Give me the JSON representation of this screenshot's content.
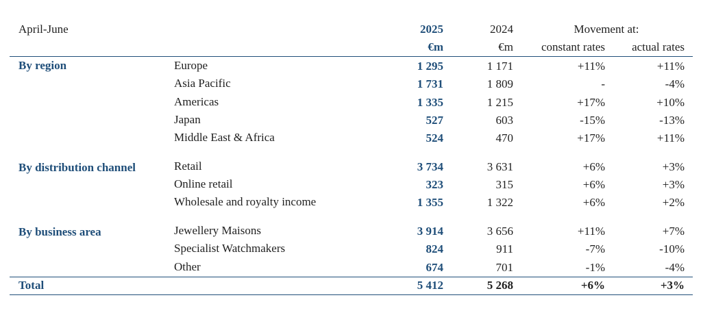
{
  "header": {
    "period": "April-June",
    "col_2025": "2025",
    "col_2024": "2024",
    "movement": "Movement at:",
    "unit_2025": "€m",
    "unit_2024": "€m",
    "constant": "constant rates",
    "actual": "actual rates"
  },
  "sections": [
    {
      "title": "By region",
      "rows": [
        {
          "label": "Europe",
          "v2025": "1 295",
          "v2024": "1 171",
          "constant": "+11%",
          "actual": "+11%"
        },
        {
          "label": "Asia Pacific",
          "v2025": "1 731",
          "v2024": "1 809",
          "constant": "-",
          "actual": "-4%"
        },
        {
          "label": "Americas",
          "v2025": "1 335",
          "v2024": "1 215",
          "constant": "+17%",
          "actual": "+10%"
        },
        {
          "label": "Japan",
          "v2025": "527",
          "v2024": "603",
          "constant": "-15%",
          "actual": "-13%"
        },
        {
          "label": "Middle East & Africa",
          "v2025": "524",
          "v2024": "470",
          "constant": "+17%",
          "actual": "+11%"
        }
      ]
    },
    {
      "title": "By distribution channel",
      "rows": [
        {
          "label": "Retail",
          "v2025": "3 734",
          "v2024": "3 631",
          "constant": "+6%",
          "actual": "+3%"
        },
        {
          "label": "Online retail",
          "v2025": "323",
          "v2024": "315",
          "constant": "+6%",
          "actual": "+3%"
        },
        {
          "label": "Wholesale and royalty income",
          "v2025": "1 355",
          "v2024": "1 322",
          "constant": "+6%",
          "actual": "+2%"
        }
      ]
    },
    {
      "title": "By business area",
      "rows": [
        {
          "label": "Jewellery Maisons",
          "v2025": "3 914",
          "v2024": "3 656",
          "constant": "+11%",
          "actual": "+7%"
        },
        {
          "label": "Specialist Watchmakers",
          "v2025": "824",
          "v2024": "911",
          "constant": "-7%",
          "actual": "-10%"
        },
        {
          "label": "Other",
          "v2025": "674",
          "v2024": "701",
          "constant": "-1%",
          "actual": "-4%"
        }
      ]
    }
  ],
  "total": {
    "label": "Total",
    "v2025": "5 412",
    "v2024": "5 268",
    "constant": "+6%",
    "actual": "+3%"
  },
  "colors": {
    "accent": "#1f4e79",
    "text": "#1f1f1f"
  }
}
